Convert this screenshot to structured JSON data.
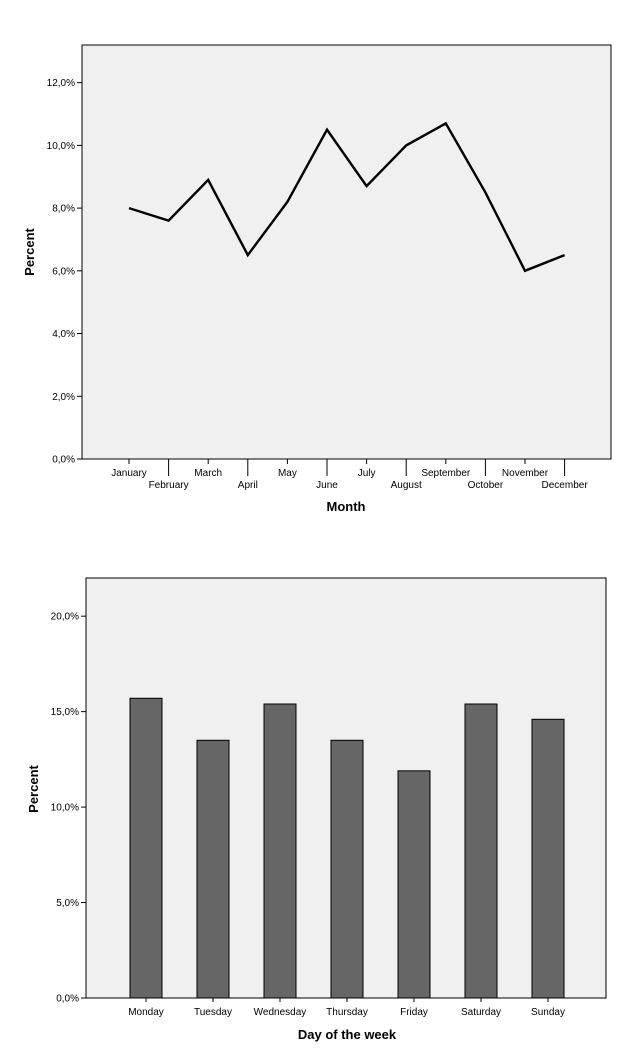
{
  "chart_data": [
    {
      "type": "line",
      "xlabel": "Month",
      "ylabel": "Percent",
      "categories": [
        "January",
        "February",
        "March",
        "April",
        "May",
        "June",
        "July",
        "August",
        "September",
        "October",
        "November",
        "December"
      ],
      "values": [
        8.0,
        7.6,
        8.9,
        6.5,
        8.2,
        10.5,
        8.7,
        10.0,
        10.7,
        8.5,
        6.0,
        6.5
      ],
      "ylim": [
        0,
        13.2
      ],
      "yticks": [
        "0,0%",
        "2,0%",
        "4,0%",
        "6,0%",
        "8,0%",
        "10,0%",
        "12,0%"
      ],
      "ytick_values": [
        0,
        2,
        4,
        6,
        8,
        10,
        12
      ],
      "line_color": "#000000",
      "background": "#f0f0f0",
      "grid": false
    },
    {
      "type": "bar",
      "xlabel": "Day of the week",
      "ylabel": "Percent",
      "categories": [
        "Monday",
        "Tuesday",
        "Wednesday",
        "Thursday",
        "Friday",
        "Saturday",
        "Sunday"
      ],
      "values": [
        15.7,
        13.5,
        15.4,
        13.5,
        11.9,
        15.4,
        14.6
      ],
      "ylim": [
        0,
        22
      ],
      "yticks": [
        "0,0%",
        "5,0%",
        "10,0%",
        "15,0%",
        "20,0%"
      ],
      "ytick_values": [
        0,
        5,
        10,
        15,
        20
      ],
      "bar_color": "#666666",
      "background": "#f0f0f0",
      "grid": false
    }
  ]
}
